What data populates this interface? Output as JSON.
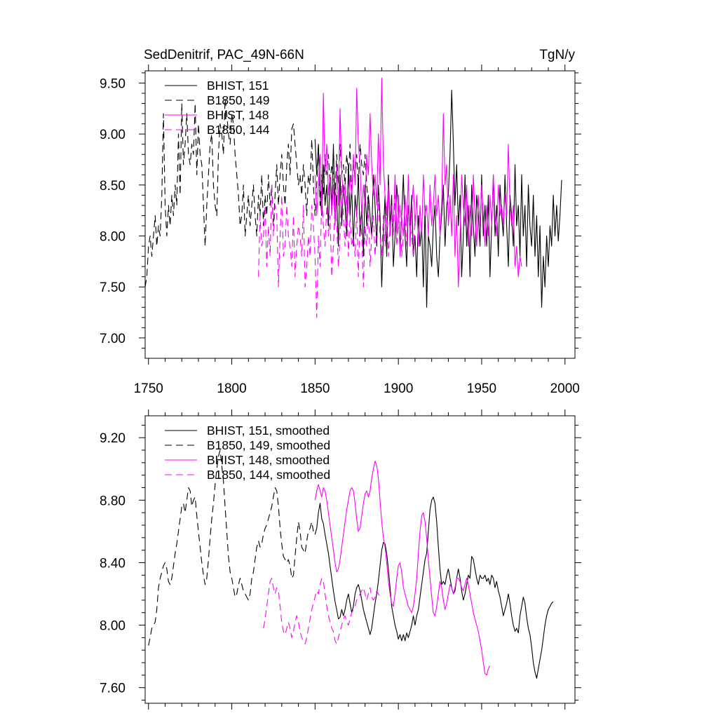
{
  "chart_data": [
    {
      "type": "line",
      "title": "SedDenitrif, PAC_49N-66N",
      "units": "TgN/y",
      "xlim": [
        1748,
        2006
      ],
      "ylim": [
        6.8,
        9.62
      ],
      "xticks": [
        1750,
        1800,
        1850,
        1900,
        1950,
        2000
      ],
      "xtick_labels": [
        "1750",
        "1800",
        "1850",
        "1900",
        "1950",
        "2000"
      ],
      "yticks": [
        7.0,
        7.5,
        8.0,
        8.5,
        9.0,
        9.5
      ],
      "ytick_labels": [
        "7.00",
        "7.50",
        "8.00",
        "8.50",
        "9.00",
        "9.50"
      ],
      "series": [
        {
          "name": "BHIST, 151",
          "color": "#000000",
          "dash": "solid",
          "x_start": 1850,
          "values": [
            8.95,
            8.6,
            8.9,
            8.4,
            8.2,
            8.7,
            8.3,
            8.5,
            8.1,
            8.6,
            8.3,
            8.9,
            8.2,
            8.4,
            7.9,
            8.6,
            8.1,
            8.5,
            8.3,
            8.0,
            8.7,
            8.2,
            8.5,
            7.9,
            8.4,
            8.2,
            8.6,
            8.0,
            8.3,
            7.8,
            8.5,
            8.1,
            8.4,
            8.2,
            8.0,
            8.6,
            8.3,
            7.9,
            8.5,
            8.2,
            7.5,
            8.0,
            8.4,
            7.8,
            8.6,
            8.1,
            8.4,
            7.7,
            8.0,
            8.5,
            8.3,
            7.9,
            8.2,
            8.6,
            8.0,
            7.7,
            8.3,
            8.1,
            8.4,
            7.8,
            8.0,
            7.6,
            8.2,
            7.9,
            8.1,
            7.5,
            8.3,
            7.3,
            8.0,
            7.9,
            7.7,
            8.1,
            8.3,
            7.8,
            7.6,
            8.0,
            8.2,
            8.5,
            7.9,
            8.3,
            8.4,
            8.8,
            9.43,
            8.9,
            8.3,
            8.7,
            8.1,
            8.4,
            7.6,
            8.0,
            8.6,
            7.9,
            8.3,
            7.6,
            8.5,
            8.1,
            7.8,
            8.4,
            8.2,
            7.9,
            8.6,
            8.0,
            8.3,
            7.9,
            8.4,
            7.6,
            8.1,
            8.6,
            8.0,
            8.3,
            7.8,
            8.5,
            8.2,
            8.0,
            8.6,
            8.1,
            7.7,
            8.4,
            8.2,
            7.9,
            8.7,
            8.1,
            8.3,
            7.8,
            8.6,
            8.0,
            8.3,
            7.7,
            8.5,
            8.1,
            7.9,
            8.4,
            7.8,
            8.2,
            7.6,
            8.1,
            7.3,
            7.8,
            7.5,
            8.0,
            7.7,
            8.1,
            7.9,
            8.4,
            8.0,
            8.3,
            7.95,
            8.2,
            8.55
          ]
        },
        {
          "name": "B1850, 149",
          "color": "#000000",
          "dash": "10,6",
          "x_start": 1748,
          "values": [
            7.5,
            7.6,
            7.9,
            8.0,
            7.8,
            8.0,
            8.2,
            7.9,
            8.1,
            8.0,
            8.4,
            9.2,
            8.3,
            8.0,
            8.3,
            8.1,
            8.4,
            8.2,
            8.5,
            8.3,
            9.0,
            8.4,
            9.3,
            8.7,
            8.9,
            9.2,
            8.8,
            8.7,
            8.9,
            8.8,
            9.3,
            8.6,
            9.1,
            8.8,
            8.7,
            8.3,
            7.9,
            8.3,
            8.6,
            8.9,
            9.0,
            8.5,
            8.3,
            8.2,
            8.8,
            9.1,
            9.0,
            8.8,
            9.35,
            9.2,
            9.0,
            8.9,
            9.2,
            9.1,
            8.8,
            8.6,
            8.4,
            8.1,
            8.2,
            8.5,
            8.0,
            8.2,
            8.4,
            8.1,
            8.3,
            8.5,
            8.2,
            8.0,
            8.4,
            8.2,
            8.6,
            8.1,
            8.4,
            8.2,
            8.6,
            8.3,
            8.5,
            8.1,
            8.4,
            8.7,
            8.3,
            8.6,
            8.8,
            8.5,
            8.3,
            8.7,
            8.9,
            8.6,
            9.05,
            9.1,
            8.9,
            8.7,
            8.5,
            8.6,
            8.4,
            8.7,
            8.5,
            8.2,
            8.6,
            8.5,
            8.95,
            8.5,
            8.2,
            8.5,
            8.9,
            8.3,
            8.6,
            8.4,
            8.8,
            8.6,
            8.8,
            8.5,
            8.7,
            8.6,
            8.4,
            8.8,
            8.5,
            8.9,
            8.6,
            8.7,
            8.5,
            8.8,
            8.6,
            8.9,
            8.4,
            8.7,
            8.6,
            8.8,
            8.5,
            8.9,
            8.7,
            8.6,
            8.8,
            8.5,
            8.3
          ]
        },
        {
          "name": "BHIST, 148",
          "color": "#ff00ff",
          "dash": "solid",
          "x_start": 1850,
          "values": [
            8.6,
            8.2,
            8.5,
            8.8,
            8.3,
            9.4,
            8.6,
            8.9,
            8.4,
            8.6,
            8.2,
            8.5,
            8.1,
            8.7,
            8.3,
            9.25,
            8.6,
            8.4,
            8.5,
            8.1,
            8.3,
            8.6,
            8.4,
            8.8,
            8.5,
            9.45,
            8.9,
            8.7,
            8.2,
            8.5,
            8.3,
            8.8,
            8.6,
            9.2,
            8.7,
            8.4,
            8.6,
            8.3,
            9.0,
            8.5,
            9.55,
            8.7,
            8.4,
            8.2,
            8.5,
            8.0,
            8.3,
            8.1,
            8.6,
            8.0,
            8.4,
            7.8,
            8.2,
            8.0,
            8.4,
            8.1,
            8.6,
            7.9,
            8.3,
            8.5,
            8.1,
            8.4,
            7.9,
            8.3,
            8.0,
            8.6,
            8.2,
            8.3,
            8.0,
            8.5,
            8.1,
            8.3,
            8.6,
            8.2,
            8.4,
            8.0,
            8.3,
            9.2,
            8.5,
            8.7,
            8.1,
            8.4,
            8.0,
            8.6,
            7.8,
            8.2,
            7.5,
            8.0,
            8.6,
            8.3,
            8.1,
            8.5,
            7.9,
            8.3,
            8.0,
            8.6,
            8.2,
            7.9,
            8.4,
            8.1,
            8.5,
            8.2,
            7.9,
            8.3,
            8.0,
            8.4,
            8.1,
            8.6,
            8.2,
            8.0,
            8.5,
            8.2,
            8.3,
            8.1,
            8.4,
            8.2,
            8.9,
            8.3,
            8.1,
            8.3,
            7.7,
            7.9,
            7.6,
            7.8,
            7.7
          ]
        },
        {
          "name": "B1850, 144",
          "color": "#ff00ff",
          "dash": "10,6",
          "x_start": 1816,
          "values": [
            7.6,
            8.2,
            7.9,
            8.0,
            8.3,
            7.7,
            8.1,
            7.8,
            8.5,
            8.0,
            8.3,
            8.2,
            7.5,
            8.0,
            8.4,
            7.8,
            7.9,
            8.3,
            8.0,
            7.9,
            7.7,
            8.2,
            7.6,
            7.9,
            8.1,
            8.0,
            7.8,
            8.3,
            7.5,
            7.7,
            8.0,
            7.8,
            8.3,
            8.1,
            7.8,
            7.2,
            8.0,
            7.7,
            8.4,
            8.1,
            7.9,
            8.3,
            8.0,
            8.2,
            7.6,
            7.9,
            8.3,
            8.1,
            7.7,
            8.0,
            8.5,
            8.2,
            7.9,
            8.4,
            7.8,
            8.2,
            7.9,
            8.0,
            7.8,
            8.3,
            7.6,
            8.2,
            8.0,
            7.5,
            8.1,
            7.9,
            8.3,
            7.7,
            8.0,
            8.2,
            7.8,
            8.1,
            8.4,
            8.0,
            7.8,
            8.2,
            7.9,
            8.3,
            7.8,
            8.1,
            8.2,
            8.0,
            8.4,
            7.9,
            8.1,
            8.3,
            7.8,
            8.0,
            8.2,
            7.9,
            8.3,
            8.1,
            8.0,
            7.8,
            8.2
          ]
        }
      ]
    },
    {
      "type": "line",
      "xlim": [
        1748,
        2006
      ],
      "ylim": [
        7.5,
        9.34
      ],
      "xticks": [
        1750,
        1800,
        1850,
        1900,
        1950,
        2000
      ],
      "yticks": [
        7.6,
        8.0,
        8.4,
        8.8,
        9.2
      ],
      "ytick_labels": [
        "7.60",
        "8.00",
        "8.40",
        "8.80",
        "9.20"
      ],
      "series": [
        {
          "name": "BHIST, 151, smoothed",
          "color": "#000000",
          "dash": "solid",
          "x_start": 1850,
          "values": [
            8.58,
            8.62,
            8.72,
            8.78,
            8.68,
            8.65,
            8.58,
            8.52,
            8.46,
            8.38,
            8.3,
            8.22,
            8.15,
            8.1,
            8.04,
            8.05,
            8.1,
            8.06,
            8.1,
            8.16,
            8.2,
            8.14,
            8.08,
            8.12,
            8.2,
            8.24,
            8.26,
            8.22,
            8.16,
            8.1,
            8.06,
            8.02,
            7.98,
            7.94,
            7.98,
            8.06,
            8.14,
            8.2,
            8.28,
            8.38,
            8.48,
            8.53,
            8.52,
            8.46,
            8.36,
            8.24,
            8.12,
            8.06,
            8.0,
            7.96,
            7.91,
            7.94,
            7.9,
            7.94,
            7.9,
            7.95,
            7.92,
            7.96,
            8.0,
            8.06,
            8.0,
            8.06,
            8.1,
            8.18,
            8.26,
            8.34,
            8.42,
            8.46,
            8.6,
            8.74,
            8.8,
            8.82,
            8.78,
            8.66,
            8.5,
            8.36,
            8.26,
            8.28,
            8.26,
            8.32,
            8.36,
            8.3,
            8.24,
            8.2,
            8.22,
            8.3,
            8.36,
            8.3,
            8.22,
            8.16,
            8.2,
            8.26,
            8.32,
            8.3,
            8.44,
            8.42,
            8.36,
            8.3,
            8.26,
            8.32,
            8.3,
            8.3,
            8.32,
            8.28,
            8.3,
            8.26,
            8.32,
            8.3,
            8.24,
            8.28,
            8.22,
            8.18,
            8.12,
            8.06,
            8.1,
            8.14,
            8.2,
            8.14,
            8.06,
            8.0,
            7.96,
            7.98,
            7.95,
            8.06,
            8.12,
            8.18,
            8.14,
            8.05,
            7.98,
            7.94,
            7.86,
            7.76,
            7.7,
            7.66,
            7.72,
            7.78,
            7.84,
            7.92,
            8.0,
            8.06,
            8.1,
            8.12,
            8.14,
            8.15
          ]
        },
        {
          "name": "B1850, 149, smoothed",
          "color": "#000000",
          "dash": "10,6",
          "x_start": 1750,
          "values": [
            7.87,
            7.92,
            7.98,
            8.0,
            8.02,
            8.1,
            8.24,
            8.3,
            8.34,
            8.38,
            8.4,
            8.36,
            8.28,
            8.26,
            8.3,
            8.38,
            8.46,
            8.52,
            8.6,
            8.68,
            8.76,
            8.78,
            8.72,
            8.8,
            8.88,
            8.86,
            8.76,
            8.8,
            8.82,
            8.7,
            8.6,
            8.5,
            8.4,
            8.32,
            8.26,
            8.3,
            8.42,
            8.56,
            8.68,
            8.78,
            8.9,
            9.0,
            9.08,
            9.12,
            9.02,
            8.92,
            8.76,
            8.6,
            8.44,
            8.34,
            8.3,
            8.24,
            8.18,
            8.2,
            8.26,
            8.3,
            8.26,
            8.22,
            8.2,
            8.18,
            8.16,
            8.2,
            8.3,
            8.34,
            8.42,
            8.5,
            8.54,
            8.5,
            8.52,
            8.58,
            8.62,
            8.64,
            8.68,
            8.72,
            8.76,
            8.82,
            8.88,
            8.86,
            8.76,
            8.62,
            8.52,
            8.44,
            8.42,
            8.4,
            8.42,
            8.38,
            8.3,
            8.32,
            8.44,
            8.56,
            8.66,
            8.6,
            8.5,
            8.48,
            8.46,
            8.54,
            8.6,
            8.62,
            8.66,
            8.6
          ]
        },
        {
          "name": "BHIST, 148, smoothed",
          "color": "#ff00ff",
          "dash": "solid",
          "x_start": 1850,
          "values": [
            8.8,
            8.86,
            8.9,
            8.86,
            8.82,
            8.88,
            8.86,
            8.8,
            8.72,
            8.64,
            8.56,
            8.48,
            8.4,
            8.34,
            8.36,
            8.42,
            8.5,
            8.58,
            8.66,
            8.74,
            8.8,
            8.86,
            8.88,
            8.86,
            8.78,
            8.68,
            8.6,
            8.62,
            8.7,
            8.78,
            8.84,
            8.86,
            8.82,
            8.86,
            8.94,
            9.0,
            9.05,
            9.02,
            8.94,
            8.8,
            8.66,
            8.56,
            8.5,
            8.4,
            8.28,
            8.2,
            8.14,
            8.12,
            8.2,
            8.3,
            8.38,
            8.4,
            8.34,
            8.24,
            8.2,
            8.16,
            8.12,
            8.1,
            8.08,
            8.12,
            8.2,
            8.3,
            8.46,
            8.6,
            8.7,
            8.72,
            8.66,
            8.56,
            8.42,
            8.3,
            8.18,
            8.08,
            8.06,
            8.12,
            8.2,
            8.28,
            8.24,
            8.16,
            8.1,
            8.14,
            8.2,
            8.26,
            8.24,
            8.2,
            8.24,
            8.3,
            8.3,
            8.28,
            8.24,
            8.22,
            8.26,
            8.3,
            8.26,
            8.2,
            8.14,
            8.08,
            8.04,
            8.0,
            7.96,
            7.9,
            7.84,
            7.76,
            7.69,
            7.68,
            7.72,
            7.74
          ]
        },
        {
          "name": "B1850, 144, smoothed",
          "color": "#ff00ff",
          "dash": "10,6",
          "x_start": 1819,
          "values": [
            7.98,
            8.04,
            8.12,
            8.2,
            8.28,
            8.3,
            8.24,
            8.2,
            8.24,
            8.22,
            8.12,
            8.02,
            7.96,
            7.94,
            7.98,
            8.02,
            7.98,
            7.92,
            7.96,
            8.02,
            8.06,
            8.02,
            7.96,
            7.92,
            7.9,
            7.88,
            7.92,
            7.98,
            8.04,
            8.1,
            8.14,
            8.18,
            8.22,
            8.2,
            8.26,
            8.3,
            8.28,
            8.2,
            8.12,
            8.06,
            8.02,
            7.98,
            7.96,
            7.9,
            7.88,
            7.92,
            7.96,
            8.0,
            8.04,
            8.06,
            8.02,
            8.0,
            8.04,
            8.08,
            8.1,
            8.12,
            8.16,
            8.18,
            8.2,
            8.22,
            8.24,
            8.2,
            8.16,
            8.2,
            8.24,
            8.18,
            8.16,
            8.18,
            8.22,
            8.2,
            8.18
          ]
        }
      ]
    }
  ]
}
